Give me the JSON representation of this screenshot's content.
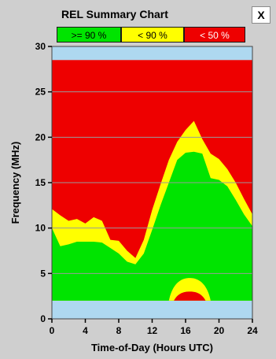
{
  "title": "REL Summary Chart",
  "close_label": "X",
  "legend": [
    {
      "label": ">= 90 %",
      "color": "#00e400"
    },
    {
      "label": "< 90 %",
      "color": "#ffff00"
    },
    {
      "label": "< 50 %",
      "color": "#ee0000"
    }
  ],
  "colors": {
    "red": "#ee0000",
    "yellow": "#ffff00",
    "green": "#00e400",
    "band": "#aed8f0",
    "grid": "#9a9a9a",
    "background": "#cfcfcf"
  },
  "chart_data": {
    "type": "area",
    "title": "REL Summary Chart",
    "xlabel": "Time-of-Day (Hours UTC)",
    "ylabel": "Frequency (MHz)",
    "xlim": [
      0,
      24
    ],
    "ylim": [
      0,
      30
    ],
    "xticks": [
      0,
      4,
      8,
      12,
      16,
      20,
      24
    ],
    "yticks": [
      0,
      5,
      10,
      15,
      20,
      25,
      30
    ],
    "grid": true,
    "plotted_frequency_range": [
      2,
      28.5
    ],
    "background_region": "< 50 %",
    "yellow_upper": {
      "hours": [
        0,
        1,
        2,
        3,
        4,
        5,
        6,
        7,
        8,
        9,
        10,
        11,
        12,
        13,
        14,
        15,
        16,
        17,
        18,
        19,
        20,
        21,
        22,
        23,
        24
      ],
      "mhz": [
        12.1,
        11.4,
        10.8,
        11.0,
        10.5,
        11.2,
        10.8,
        8.7,
        8.6,
        7.5,
        6.7,
        8.7,
        12.0,
        14.8,
        17.5,
        19.5,
        20.8,
        21.8,
        19.8,
        18.2,
        17.6,
        16.5,
        15.0,
        13.2,
        11.5
      ]
    },
    "green_upper": {
      "hours": [
        0,
        1,
        2,
        3,
        4,
        5,
        6,
        7,
        8,
        9,
        10,
        11,
        12,
        13,
        14,
        15,
        16,
        17,
        18,
        19,
        20,
        21,
        22,
        23,
        24
      ],
      "mhz": [
        10.0,
        8.0,
        8.2,
        8.5,
        8.5,
        8.5,
        8.4,
        7.8,
        7.2,
        6.3,
        6.0,
        7.2,
        9.8,
        12.5,
        15.0,
        17.5,
        18.3,
        18.4,
        18.2,
        15.5,
        15.3,
        14.6,
        13.1,
        11.5,
        10.2
      ]
    },
    "low_yellow": {
      "hours": [
        14,
        19
      ],
      "peak_mhz": 4.5,
      "peak_hour": 16.5
    },
    "low_red": {
      "hours": [
        14.6,
        18.4
      ],
      "peak_mhz": 3.0,
      "peak_hour": 16.5
    }
  }
}
